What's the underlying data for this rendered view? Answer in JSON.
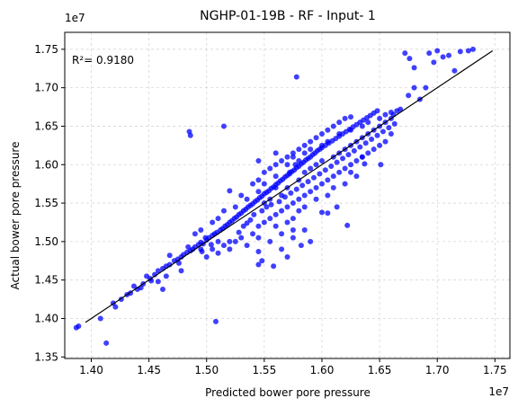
{
  "chart_data": {
    "type": "scatter",
    "title": "NGHP-01-19B - RF - Input- 1",
    "xlabel": "Predicted bower pore pressure",
    "ylabel": "Actual bower pore pressure",
    "x_offset_label": "1e7",
    "y_offset_label": "1e7",
    "annotation": "R²= 0.9180",
    "xlim": [
      1.377,
      1.763
    ],
    "ylim": [
      1.348,
      1.772
    ],
    "x_ticks": [
      1.4,
      1.45,
      1.5,
      1.55,
      1.6,
      1.65,
      1.7,
      1.75
    ],
    "x_tick_labels": [
      "1.40",
      "1.45",
      "1.50",
      "1.55",
      "1.60",
      "1.65",
      "1.70",
      "1.75"
    ],
    "y_ticks": [
      1.35,
      1.4,
      1.45,
      1.5,
      1.55,
      1.6,
      1.65,
      1.7,
      1.75
    ],
    "y_tick_labels": [
      "1.35",
      "1.40",
      "1.45",
      "1.50",
      "1.55",
      "1.60",
      "1.65",
      "1.70",
      "1.75"
    ],
    "grid": true,
    "point_color": "#0000ff",
    "line_color": "#000000",
    "fit_line": {
      "x": [
        1.395,
        1.748
      ],
      "y": [
        1.395,
        1.748
      ]
    },
    "points": [
      [
        1.387,
        1.388
      ],
      [
        1.389,
        1.39
      ],
      [
        1.408,
        1.4
      ],
      [
        1.413,
        1.368
      ],
      [
        1.419,
        1.42
      ],
      [
        1.421,
        1.415
      ],
      [
        1.426,
        1.425
      ],
      [
        1.431,
        1.431
      ],
      [
        1.434,
        1.433
      ],
      [
        1.437,
        1.442
      ],
      [
        1.44,
        1.438
      ],
      [
        1.445,
        1.445
      ],
      [
        1.448,
        1.455
      ],
      [
        1.451,
        1.452
      ],
      [
        1.455,
        1.457
      ],
      [
        1.458,
        1.448
      ],
      [
        1.462,
        1.465
      ],
      [
        1.465,
        1.468
      ],
      [
        1.468,
        1.47
      ],
      [
        1.472,
        1.475
      ],
      [
        1.475,
        1.477
      ],
      [
        1.478,
        1.48
      ],
      [
        1.48,
        1.483
      ],
      [
        1.483,
        1.486
      ],
      [
        1.486,
        1.488
      ],
      [
        1.488,
        1.49
      ],
      [
        1.49,
        1.493
      ],
      [
        1.493,
        1.496
      ],
      [
        1.495,
        1.499
      ],
      [
        1.497,
        1.497
      ],
      [
        1.5,
        1.502
      ],
      [
        1.502,
        1.505
      ],
      [
        1.505,
        1.508
      ],
      [
        1.507,
        1.51
      ],
      [
        1.509,
        1.512
      ],
      [
        1.512,
        1.515
      ],
      [
        1.514,
        1.517
      ],
      [
        1.516,
        1.52
      ],
      [
        1.518,
        1.522
      ],
      [
        1.52,
        1.525
      ],
      [
        1.522,
        1.527
      ],
      [
        1.524,
        1.53
      ],
      [
        1.526,
        1.532
      ],
      [
        1.528,
        1.535
      ],
      [
        1.53,
        1.537
      ],
      [
        1.532,
        1.54
      ],
      [
        1.534,
        1.542
      ],
      [
        1.536,
        1.545
      ],
      [
        1.538,
        1.547
      ],
      [
        1.54,
        1.549
      ],
      [
        1.542,
        1.552
      ],
      [
        1.544,
        1.554
      ],
      [
        1.546,
        1.557
      ],
      [
        1.548,
        1.559
      ],
      [
        1.55,
        1.562
      ],
      [
        1.552,
        1.564
      ],
      [
        1.554,
        1.566
      ],
      [
        1.556,
        1.569
      ],
      [
        1.558,
        1.571
      ],
      [
        1.56,
        1.574
      ],
      [
        1.562,
        1.576
      ],
      [
        1.564,
        1.579
      ],
      [
        1.566,
        1.581
      ],
      [
        1.568,
        1.584
      ],
      [
        1.57,
        1.586
      ],
      [
        1.572,
        1.588
      ],
      [
        1.574,
        1.591
      ],
      [
        1.576,
        1.593
      ],
      [
        1.578,
        1.596
      ],
      [
        1.58,
        1.598
      ],
      [
        1.582,
        1.601
      ],
      [
        1.584,
        1.603
      ],
      [
        1.586,
        1.606
      ],
      [
        1.588,
        1.608
      ],
      [
        1.59,
        1.61
      ],
      [
        1.592,
        1.613
      ],
      [
        1.594,
        1.615
      ],
      [
        1.596,
        1.618
      ],
      [
        1.598,
        1.62
      ],
      [
        1.6,
        1.622
      ],
      [
        1.603,
        1.625
      ],
      [
        1.606,
        1.628
      ],
      [
        1.609,
        1.631
      ],
      [
        1.612,
        1.634
      ],
      [
        1.615,
        1.637
      ],
      [
        1.618,
        1.64
      ],
      [
        1.621,
        1.643
      ],
      [
        1.624,
        1.646
      ],
      [
        1.627,
        1.649
      ],
      [
        1.63,
        1.652
      ],
      [
        1.633,
        1.655
      ],
      [
        1.636,
        1.658
      ],
      [
        1.639,
        1.661
      ],
      [
        1.642,
        1.664
      ],
      [
        1.645,
        1.667
      ],
      [
        1.648,
        1.67
      ],
      [
        1.52,
        1.5
      ],
      [
        1.53,
        1.505
      ],
      [
        1.54,
        1.51
      ],
      [
        1.545,
        1.52
      ],
      [
        1.55,
        1.525
      ],
      [
        1.555,
        1.53
      ],
      [
        1.56,
        1.535
      ],
      [
        1.565,
        1.54
      ],
      [
        1.57,
        1.545
      ],
      [
        1.575,
        1.55
      ],
      [
        1.58,
        1.555
      ],
      [
        1.585,
        1.56
      ],
      [
        1.59,
        1.565
      ],
      [
        1.595,
        1.57
      ],
      [
        1.6,
        1.575
      ],
      [
        1.605,
        1.58
      ],
      [
        1.61,
        1.585
      ],
      [
        1.615,
        1.59
      ],
      [
        1.62,
        1.595
      ],
      [
        1.625,
        1.6
      ],
      [
        1.63,
        1.605
      ],
      [
        1.635,
        1.61
      ],
      [
        1.64,
        1.615
      ],
      [
        1.645,
        1.62
      ],
      [
        1.65,
        1.625
      ],
      [
        1.655,
        1.63
      ],
      [
        1.66,
        1.64
      ],
      [
        1.53,
        1.56
      ],
      [
        1.54,
        1.575
      ],
      [
        1.545,
        1.58
      ],
      [
        1.55,
        1.59
      ],
      [
        1.555,
        1.595
      ],
      [
        1.56,
        1.6
      ],
      [
        1.565,
        1.605
      ],
      [
        1.57,
        1.61
      ],
      [
        1.575,
        1.615
      ],
      [
        1.58,
        1.62
      ],
      [
        1.585,
        1.625
      ],
      [
        1.59,
        1.63
      ],
      [
        1.595,
        1.635
      ],
      [
        1.6,
        1.64
      ],
      [
        1.605,
        1.645
      ],
      [
        1.61,
        1.65
      ],
      [
        1.615,
        1.655
      ],
      [
        1.62,
        1.66
      ],
      [
        1.625,
        1.662
      ],
      [
        1.56,
        1.52
      ],
      [
        1.57,
        1.525
      ],
      [
        1.575,
        1.53
      ],
      [
        1.58,
        1.54
      ],
      [
        1.585,
        1.545
      ],
      [
        1.595,
        1.555
      ],
      [
        1.605,
        1.56
      ],
      [
        1.61,
        1.57
      ],
      [
        1.62,
        1.575
      ],
      [
        1.63,
        1.585
      ],
      [
        1.5,
        1.48
      ],
      [
        1.505,
        1.49
      ],
      [
        1.51,
        1.485
      ],
      [
        1.515,
        1.495
      ],
      [
        1.52,
        1.49
      ],
      [
        1.525,
        1.5
      ],
      [
        1.535,
        1.495
      ],
      [
        1.545,
        1.505
      ],
      [
        1.555,
        1.5
      ],
      [
        1.565,
        1.51
      ],
      [
        1.575,
        1.505
      ],
      [
        1.585,
        1.515
      ],
      [
        1.49,
        1.51
      ],
      [
        1.495,
        1.515
      ],
      [
        1.505,
        1.525
      ],
      [
        1.51,
        1.53
      ],
      [
        1.515,
        1.54
      ],
      [
        1.525,
        1.545
      ],
      [
        1.535,
        1.555
      ],
      [
        1.545,
        1.565
      ],
      [
        1.55,
        1.575
      ],
      [
        1.56,
        1.585
      ],
      [
        1.57,
        1.6
      ],
      [
        1.575,
        1.61
      ],
      [
        1.58,
        1.605
      ],
      [
        1.585,
        1.615
      ],
      [
        1.59,
        1.62
      ],
      [
        1.6,
        1.625
      ],
      [
        1.605,
        1.63
      ],
      [
        1.615,
        1.64
      ],
      [
        1.625,
        1.645
      ],
      [
        1.635,
        1.65
      ],
      [
        1.64,
        1.655
      ],
      [
        1.65,
        1.66
      ],
      [
        1.655,
        1.665
      ],
      [
        1.66,
        1.668
      ],
      [
        1.55,
        1.55
      ],
      [
        1.555,
        1.555
      ],
      [
        1.565,
        1.56
      ],
      [
        1.57,
        1.57
      ],
      [
        1.58,
        1.58
      ],
      [
        1.585,
        1.59
      ],
      [
        1.59,
        1.595
      ],
      [
        1.595,
        1.6
      ],
      [
        1.6,
        1.605
      ],
      [
        1.61,
        1.61
      ],
      [
        1.615,
        1.615
      ],
      [
        1.62,
        1.62
      ],
      [
        1.625,
        1.625
      ],
      [
        1.63,
        1.63
      ],
      [
        1.635,
        1.635
      ],
      [
        1.64,
        1.64
      ],
      [
        1.645,
        1.645
      ],
      [
        1.65,
        1.65
      ],
      [
        1.655,
        1.655
      ],
      [
        1.66,
        1.66
      ],
      [
        1.485,
        1.643
      ],
      [
        1.486,
        1.638
      ],
      [
        1.515,
        1.65
      ],
      [
        1.578,
        1.714
      ],
      [
        1.508,
        1.396
      ],
      [
        1.52,
        1.566
      ],
      [
        1.56,
        1.615
      ],
      [
        1.545,
        1.605
      ],
      [
        1.622,
        1.521
      ],
      [
        1.605,
        1.537
      ],
      [
        1.637,
        1.601
      ],
      [
        1.651,
        1.6
      ],
      [
        1.575,
        1.515
      ],
      [
        1.56,
        1.57
      ],
      [
        1.572,
        1.59
      ],
      [
        1.577,
        1.6
      ],
      [
        1.662,
        1.665
      ],
      [
        1.665,
        1.67
      ],
      [
        1.668,
        1.672
      ],
      [
        1.675,
        1.69
      ],
      [
        1.68,
        1.7
      ],
      [
        1.685,
        1.685
      ],
      [
        1.69,
        1.7
      ],
      [
        1.693,
        1.745
      ],
      [
        1.7,
        1.748
      ],
      [
        1.705,
        1.74
      ],
      [
        1.71,
        1.742
      ],
      [
        1.715,
        1.722
      ],
      [
        1.72,
        1.747
      ],
      [
        1.727,
        1.748
      ],
      [
        1.731,
        1.75
      ],
      [
        1.672,
        1.745
      ],
      [
        1.676,
        1.738
      ],
      [
        1.68,
        1.726
      ],
      [
        1.697,
        1.733
      ],
      [
        1.484,
        1.493
      ],
      [
        1.476,
        1.472
      ],
      [
        1.496,
        1.487
      ],
      [
        1.535,
        1.524
      ],
      [
        1.545,
        1.47
      ],
      [
        1.548,
        1.475
      ],
      [
        1.545,
        1.487
      ],
      [
        1.558,
        1.468
      ],
      [
        1.565,
        1.49
      ],
      [
        1.57,
        1.48
      ],
      [
        1.582,
        1.495
      ],
      [
        1.59,
        1.5
      ],
      [
        1.6,
        1.538
      ],
      [
        1.613,
        1.545
      ],
      [
        1.625,
        1.59
      ],
      [
        1.635,
        1.61
      ],
      [
        1.465,
        1.455
      ],
      [
        1.458,
        1.462
      ],
      [
        1.452,
        1.449
      ],
      [
        1.443,
        1.44
      ],
      [
        1.462,
        1.438
      ],
      [
        1.478,
        1.462
      ],
      [
        1.468,
        1.482
      ],
      [
        1.499,
        1.505
      ],
      [
        1.495,
        1.49
      ],
      [
        1.504,
        1.496
      ],
      [
        1.51,
        1.5
      ],
      [
        1.528,
        1.512
      ],
      [
        1.532,
        1.52
      ],
      [
        1.538,
        1.528
      ],
      [
        1.541,
        1.535
      ],
      [
        1.548,
        1.54
      ],
      [
        1.552,
        1.545
      ],
      [
        1.556,
        1.548
      ],
      [
        1.563,
        1.552
      ],
      [
        1.568,
        1.558
      ],
      [
        1.573,
        1.563
      ],
      [
        1.578,
        1.568
      ],
      [
        1.583,
        1.573
      ],
      [
        1.588,
        1.578
      ],
      [
        1.593,
        1.583
      ],
      [
        1.598,
        1.588
      ],
      [
        1.603,
        1.593
      ],
      [
        1.608,
        1.598
      ],
      [
        1.613,
        1.603
      ],
      [
        1.618,
        1.608
      ],
      [
        1.623,
        1.613
      ],
      [
        1.628,
        1.618
      ],
      [
        1.633,
        1.623
      ],
      [
        1.638,
        1.628
      ],
      [
        1.643,
        1.633
      ],
      [
        1.648,
        1.638
      ],
      [
        1.653,
        1.643
      ],
      [
        1.658,
        1.648
      ],
      [
        1.663,
        1.653
      ]
    ]
  }
}
